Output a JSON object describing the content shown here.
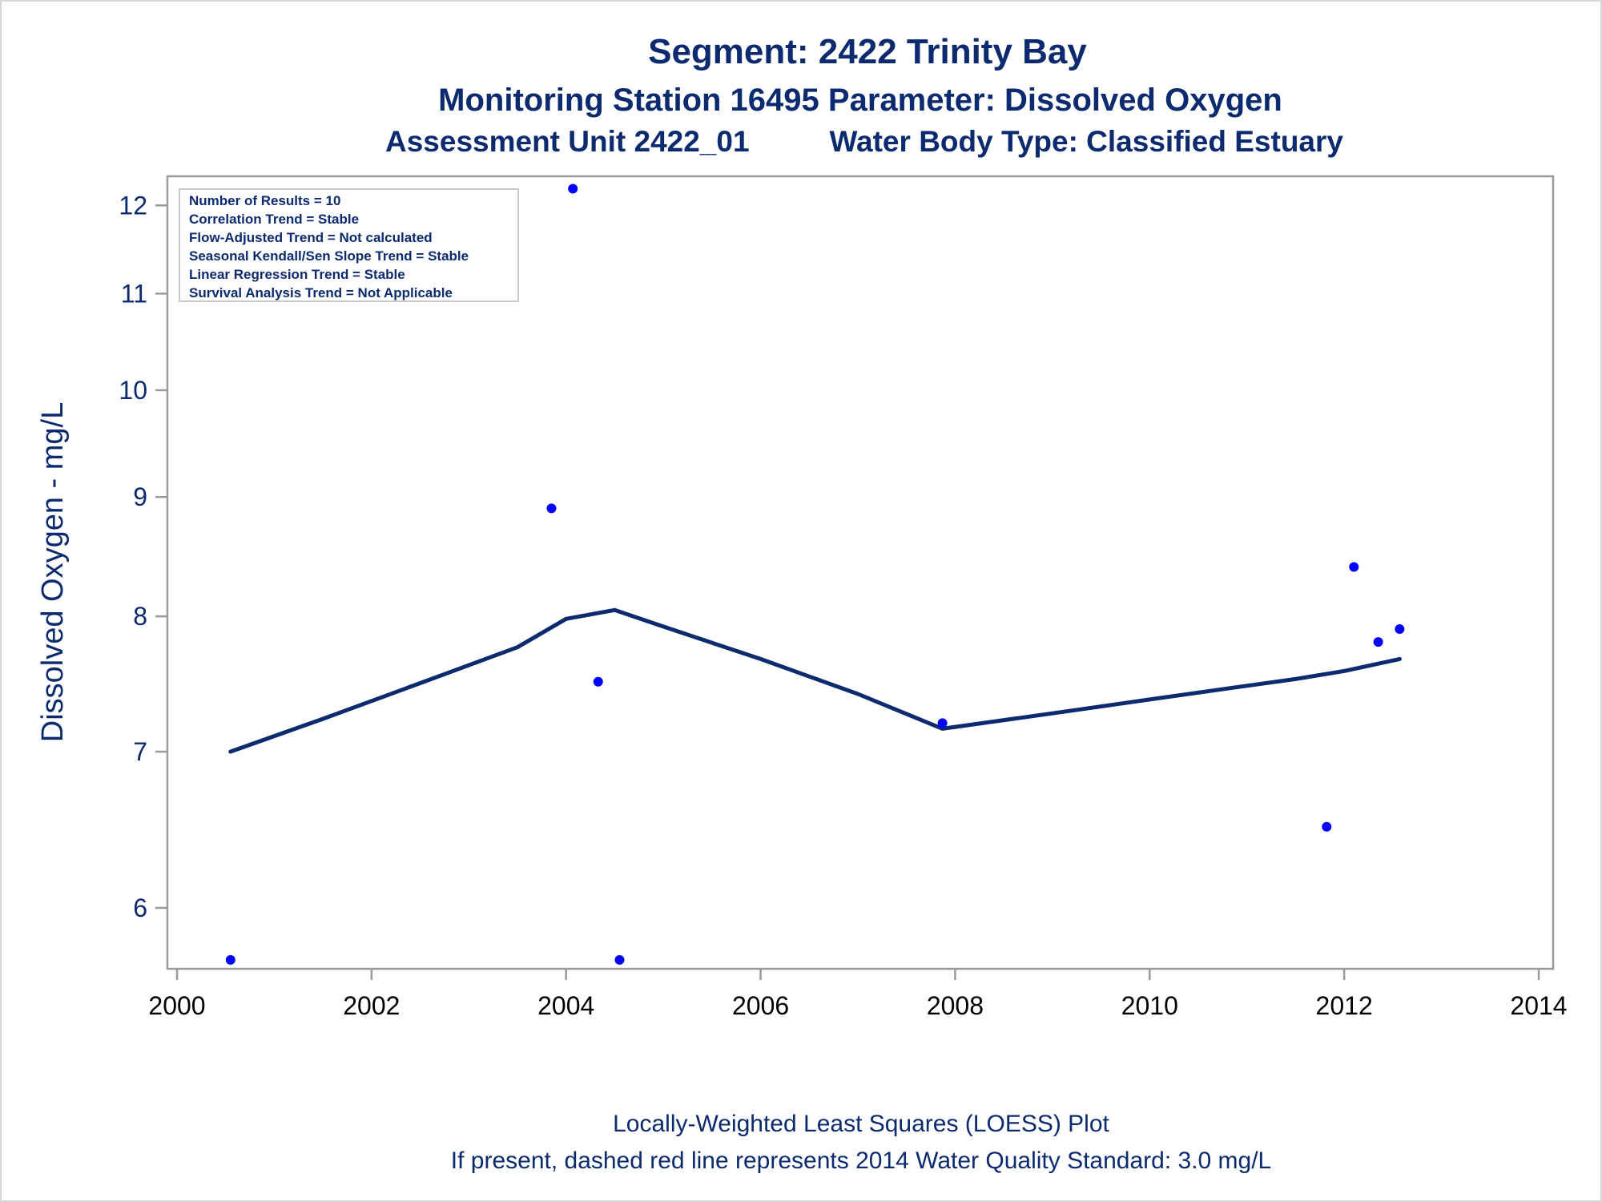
{
  "colors": {
    "text": "#0b2a6f",
    "points": "#0000ff",
    "loess": "#0b2a6f",
    "axis": "#9a9a9a"
  },
  "chart_data": {
    "type": "scatter",
    "title": "Segment: 2422  Trinity Bay",
    "subtitle": "Monitoring Station 16495 Parameter: Dissolved Oxygen",
    "subtitle2_left": "Assessment Unit 2422_01",
    "subtitle2_right": "Water Body Type: Classified Estuary",
    "xlabel": "",
    "ylabel": "Dissolved Oxygen - mg/L",
    "xlim": [
      2000,
      2014
    ],
    "ylim": [
      5.65,
      12.35
    ],
    "y_scale": "log",
    "x_ticks": [
      "2000",
      "2002",
      "2004",
      "2006",
      "2008",
      "2010",
      "2012",
      "2014"
    ],
    "y_ticks": [
      "6",
      "7",
      "8",
      "9",
      "10",
      "11",
      "12"
    ],
    "grid": false,
    "series": [
      {
        "type": "scatter",
        "x": [
          2000.55,
          2003.85,
          2004.07,
          2004.33,
          2004.55,
          2007.87,
          2011.82,
          2012.1,
          2012.35,
          2012.57
        ],
        "y": [
          5.7,
          8.9,
          12.2,
          7.5,
          5.7,
          7.2,
          6.5,
          8.4,
          7.8,
          7.9
        ]
      },
      {
        "type": "line",
        "x": [
          2000.55,
          2001.5,
          2002.5,
          2003.5,
          2004.0,
          2004.5,
          2005.0,
          2006.0,
          2007.0,
          2007.87,
          2009.0,
          2010.0,
          2011.0,
          2011.5,
          2012.0,
          2012.57
        ],
        "y": [
          7.0,
          7.23,
          7.49,
          7.76,
          7.98,
          8.05,
          7.92,
          7.67,
          7.41,
          7.16,
          7.27,
          7.37,
          7.47,
          7.52,
          7.58,
          7.67
        ]
      }
    ],
    "stats_box": [
      "Number of Results = 10",
      "Correlation Trend = Stable",
      "Flow-Adjusted Trend = Not calculated",
      "Seasonal Kendall/Sen Slope Trend = Stable",
      "Linear Regression Trend = Stable",
      "Survival Analysis Trend = Not Applicable"
    ],
    "footnotes": [
      "Locally-Weighted Least Squares (LOESS) Plot",
      "If present, dashed red line represents 2014 Water Quality Standard: 3.0 mg/L"
    ]
  }
}
